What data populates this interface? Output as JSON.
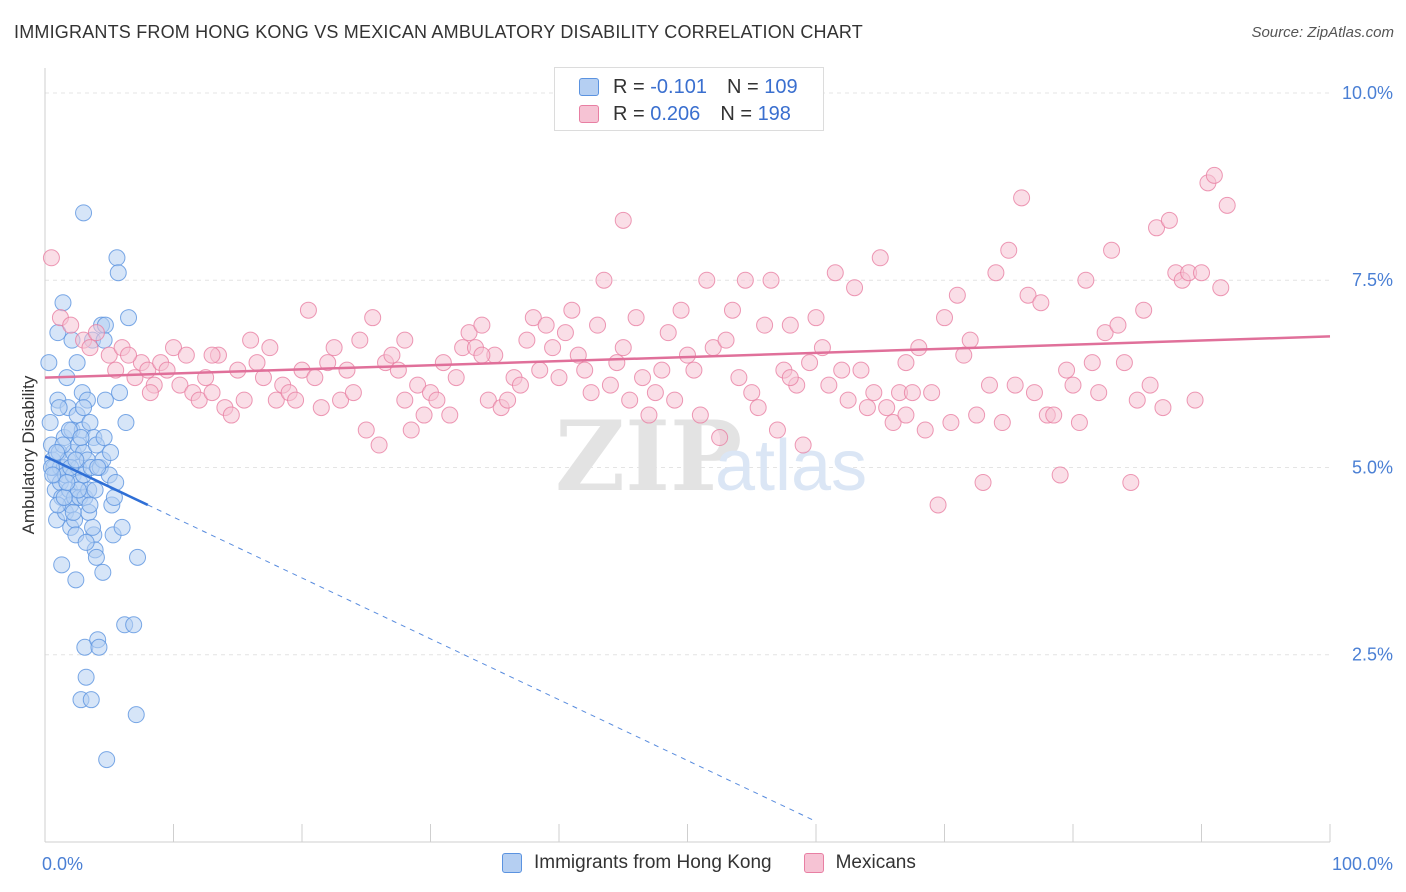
{
  "header": {
    "title": "IMMIGRANTS FROM HONG KONG VS MEXICAN AMBULATORY DISABILITY CORRELATION CHART",
    "source": "Source: ZipAtlas.com"
  },
  "legend": {
    "rows": [
      {
        "r_label": "R =",
        "r_value": "-0.101",
        "n_label": "N =",
        "n_value": "109"
      },
      {
        "r_label": "R =",
        "r_value": "0.206",
        "n_label": "N =",
        "n_value": "198"
      }
    ]
  },
  "watermark": {
    "zip": "ZIP",
    "atlas": "atlas"
  },
  "colors": {
    "blue": "#5b93e0",
    "blue_fill": "#b5cff2",
    "blue_line": "#2f6fd6",
    "pink": "#e87fa3",
    "pink_fill": "#f6c3d4",
    "pink_line": "#e0709a",
    "axis_label": "#4a7fd4",
    "grid": "#e4e4e4"
  },
  "chart_data": {
    "type": "scatter",
    "title": "IMMIGRANTS FROM HONG KONG VS MEXICAN AMBULATORY DISABILITY CORRELATION CHART",
    "xlabel": "",
    "ylabel": "Ambulatory Disability",
    "xlim": [
      0,
      100
    ],
    "ylim": [
      0,
      10.2
    ],
    "x_tick_labels": [
      "0.0%",
      "100.0%"
    ],
    "y_ticks": [
      2.5,
      5.0,
      7.5,
      10.0
    ],
    "y_tick_labels": [
      "2.5%",
      "5.0%",
      "7.5%",
      "10.0%"
    ],
    "grid": true,
    "series": [
      {
        "name": "Immigrants from Hong Kong",
        "color": "blue",
        "trend": {
          "x0": 0,
          "y0": 5.15,
          "x1": 8,
          "y1": 4.5,
          "dashed_to_x": 60
        },
        "points": [
          [
            0.3,
            6.4
          ],
          [
            0.4,
            5.6
          ],
          [
            0.5,
            5.3
          ],
          [
            0.6,
            5.1
          ],
          [
            0.7,
            5.0
          ],
          [
            0.8,
            4.9
          ],
          [
            0.8,
            4.7
          ],
          [
            0.9,
            4.3
          ],
          [
            1.0,
            6.8
          ],
          [
            1.0,
            5.9
          ],
          [
            1.1,
            5.2
          ],
          [
            1.2,
            5.0
          ],
          [
            1.2,
            4.8
          ],
          [
            1.3,
            4.6
          ],
          [
            1.3,
            3.7
          ],
          [
            1.4,
            7.2
          ],
          [
            1.5,
            5.4
          ],
          [
            1.5,
            5.0
          ],
          [
            1.6,
            4.9
          ],
          [
            1.6,
            4.4
          ],
          [
            1.7,
            6.2
          ],
          [
            1.8,
            5.8
          ],
          [
            1.8,
            5.1
          ],
          [
            1.9,
            4.7
          ],
          [
            2.0,
            4.5
          ],
          [
            2.0,
            4.2
          ],
          [
            2.1,
            6.7
          ],
          [
            2.1,
            5.5
          ],
          [
            2.2,
            5.2
          ],
          [
            2.2,
            4.9
          ],
          [
            2.3,
            4.6
          ],
          [
            2.3,
            4.3
          ],
          [
            2.4,
            4.1
          ],
          [
            2.4,
            3.5
          ],
          [
            2.5,
            6.4
          ],
          [
            2.5,
            5.7
          ],
          [
            2.6,
            5.3
          ],
          [
            2.6,
            5.0
          ],
          [
            2.7,
            4.8
          ],
          [
            2.7,
            4.6
          ],
          [
            2.8,
            1.9
          ],
          [
            2.9,
            6.0
          ],
          [
            2.9,
            5.5
          ],
          [
            3.0,
            5.2
          ],
          [
            3.0,
            4.9
          ],
          [
            3.1,
            4.6
          ],
          [
            3.1,
            2.6
          ],
          [
            3.2,
            2.2
          ],
          [
            3.3,
            5.9
          ],
          [
            3.3,
            5.1
          ],
          [
            3.4,
            4.7
          ],
          [
            3.4,
            4.4
          ],
          [
            3.5,
            5.6
          ],
          [
            3.6,
            5.0
          ],
          [
            3.6,
            1.9
          ],
          [
            3.7,
            6.7
          ],
          [
            3.8,
            5.4
          ],
          [
            3.8,
            4.1
          ],
          [
            3.9,
            3.9
          ],
          [
            4.0,
            5.3
          ],
          [
            4.0,
            3.8
          ],
          [
            4.1,
            2.7
          ],
          [
            4.2,
            2.6
          ],
          [
            4.3,
            5.0
          ],
          [
            4.4,
            6.9
          ],
          [
            4.5,
            5.1
          ],
          [
            4.5,
            3.6
          ],
          [
            4.6,
            6.7
          ],
          [
            4.7,
            5.9
          ],
          [
            4.8,
            1.1
          ],
          [
            3.0,
            8.4
          ],
          [
            4.7,
            6.9
          ],
          [
            5.0,
            4.9
          ],
          [
            5.2,
            4.5
          ],
          [
            5.3,
            4.1
          ],
          [
            5.5,
            4.8
          ],
          [
            5.6,
            7.8
          ],
          [
            5.7,
            7.6
          ],
          [
            5.8,
            6.0
          ],
          [
            6.0,
            4.2
          ],
          [
            6.2,
            2.9
          ],
          [
            6.3,
            5.6
          ],
          [
            6.5,
            7.0
          ],
          [
            6.9,
            2.9
          ],
          [
            7.1,
            1.7
          ],
          [
            7.2,
            3.8
          ],
          [
            0.5,
            5.0
          ],
          [
            1.0,
            4.5
          ],
          [
            1.4,
            5.3
          ],
          [
            2.0,
            5.0
          ],
          [
            2.6,
            4.7
          ],
          [
            3.2,
            4.0
          ],
          [
            3.7,
            4.2
          ],
          [
            1.1,
            5.8
          ],
          [
            1.9,
            5.5
          ],
          [
            2.4,
            5.1
          ],
          [
            0.6,
            4.9
          ],
          [
            1.5,
            4.6
          ],
          [
            2.8,
            5.4
          ],
          [
            3.5,
            4.5
          ],
          [
            4.1,
            5.0
          ],
          [
            0.9,
            5.2
          ],
          [
            1.7,
            4.8
          ],
          [
            2.2,
            4.4
          ],
          [
            3.0,
            5.8
          ],
          [
            3.9,
            4.7
          ],
          [
            4.6,
            5.4
          ],
          [
            5.1,
            5.2
          ],
          [
            5.4,
            4.6
          ]
        ]
      },
      {
        "name": "Mexicans",
        "color": "pink",
        "trend": {
          "x0": 0,
          "y0": 6.2,
          "x1": 100,
          "y1": 6.75
        },
        "points": [
          [
            0.5,
            7.8
          ],
          [
            1.2,
            7.0
          ],
          [
            2.0,
            6.9
          ],
          [
            3.0,
            6.7
          ],
          [
            4.0,
            6.8
          ],
          [
            5.0,
            6.5
          ],
          [
            5.5,
            6.3
          ],
          [
            6.0,
            6.6
          ],
          [
            7.0,
            6.2
          ],
          [
            7.5,
            6.4
          ],
          [
            8.0,
            6.3
          ],
          [
            8.5,
            6.1
          ],
          [
            9.0,
            6.4
          ],
          [
            9.5,
            6.3
          ],
          [
            10.0,
            6.6
          ],
          [
            10.5,
            6.1
          ],
          [
            11.0,
            6.5
          ],
          [
            11.5,
            6.0
          ],
          [
            12.0,
            5.9
          ],
          [
            12.5,
            6.2
          ],
          [
            13.0,
            6.0
          ],
          [
            13.5,
            6.5
          ],
          [
            14.0,
            5.8
          ],
          [
            14.5,
            5.7
          ],
          [
            15.0,
            6.3
          ],
          [
            15.5,
            5.9
          ],
          [
            16.0,
            6.7
          ],
          [
            16.5,
            6.4
          ],
          [
            17.0,
            6.2
          ],
          [
            17.5,
            6.6
          ],
          [
            18.0,
            5.9
          ],
          [
            18.5,
            6.1
          ],
          [
            19.0,
            6.0
          ],
          [
            19.5,
            5.9
          ],
          [
            20.0,
            6.3
          ],
          [
            20.5,
            7.1
          ],
          [
            21.0,
            6.2
          ],
          [
            21.5,
            5.8
          ],
          [
            22.0,
            6.4
          ],
          [
            22.5,
            6.6
          ],
          [
            23.0,
            5.9
          ],
          [
            23.5,
            6.3
          ],
          [
            24.0,
            6.0
          ],
          [
            24.5,
            6.7
          ],
          [
            25.0,
            5.5
          ],
          [
            25.5,
            7.0
          ],
          [
            26.0,
            5.3
          ],
          [
            26.5,
            6.4
          ],
          [
            27.0,
            6.5
          ],
          [
            27.5,
            6.3
          ],
          [
            28.0,
            5.9
          ],
          [
            28.5,
            5.5
          ],
          [
            29.0,
            6.1
          ],
          [
            29.5,
            5.7
          ],
          [
            30.0,
            6.0
          ],
          [
            30.5,
            5.9
          ],
          [
            31.0,
            6.4
          ],
          [
            31.5,
            5.7
          ],
          [
            32.0,
            6.2
          ],
          [
            32.5,
            6.6
          ],
          [
            33.0,
            6.8
          ],
          [
            33.5,
            6.6
          ],
          [
            34.0,
            6.9
          ],
          [
            34.5,
            5.9
          ],
          [
            35.0,
            6.5
          ],
          [
            35.5,
            5.8
          ],
          [
            36.0,
            5.9
          ],
          [
            36.5,
            6.2
          ],
          [
            37.0,
            6.1
          ],
          [
            37.5,
            6.7
          ],
          [
            38.0,
            7.0
          ],
          [
            38.5,
            6.3
          ],
          [
            39.0,
            6.9
          ],
          [
            39.5,
            6.6
          ],
          [
            40.0,
            6.2
          ],
          [
            40.5,
            6.8
          ],
          [
            41.0,
            7.1
          ],
          [
            41.5,
            6.5
          ],
          [
            42.0,
            6.3
          ],
          [
            42.5,
            6.0
          ],
          [
            43.0,
            6.9
          ],
          [
            43.5,
            7.5
          ],
          [
            44.0,
            6.1
          ],
          [
            44.5,
            6.4
          ],
          [
            45.0,
            6.6
          ],
          [
            45.5,
            5.9
          ],
          [
            46.0,
            7.0
          ],
          [
            46.5,
            6.2
          ],
          [
            47.0,
            5.7
          ],
          [
            47.5,
            6.0
          ],
          [
            48.0,
            6.3
          ],
          [
            48.5,
            6.8
          ],
          [
            49.0,
            5.9
          ],
          [
            49.5,
            7.1
          ],
          [
            50.0,
            6.5
          ],
          [
            50.5,
            6.3
          ],
          [
            51.0,
            5.7
          ],
          [
            51.5,
            7.5
          ],
          [
            52.0,
            6.6
          ],
          [
            52.5,
            5.4
          ],
          [
            53.0,
            6.7
          ],
          [
            53.5,
            7.1
          ],
          [
            54.0,
            6.2
          ],
          [
            54.5,
            7.5
          ],
          [
            55.0,
            6.0
          ],
          [
            55.5,
            5.8
          ],
          [
            56.0,
            6.9
          ],
          [
            56.5,
            7.5
          ],
          [
            57.0,
            5.5
          ],
          [
            57.5,
            6.3
          ],
          [
            58.0,
            6.9
          ],
          [
            58.5,
            6.1
          ],
          [
            59.0,
            5.3
          ],
          [
            59.5,
            6.4
          ],
          [
            60.0,
            7.0
          ],
          [
            60.5,
            6.6
          ],
          [
            61.0,
            6.1
          ],
          [
            61.5,
            7.6
          ],
          [
            62.0,
            6.3
          ],
          [
            62.5,
            5.9
          ],
          [
            63.0,
            7.4
          ],
          [
            63.5,
            6.3
          ],
          [
            64.0,
            5.8
          ],
          [
            64.5,
            6.0
          ],
          [
            65.0,
            7.8
          ],
          [
            65.5,
            5.8
          ],
          [
            66.0,
            5.6
          ],
          [
            66.5,
            6.0
          ],
          [
            67.0,
            5.7
          ],
          [
            67.5,
            6.0
          ],
          [
            68.0,
            6.6
          ],
          [
            68.5,
            5.5
          ],
          [
            69.0,
            6.0
          ],
          [
            69.5,
            4.5
          ],
          [
            70.0,
            7.0
          ],
          [
            70.5,
            5.6
          ],
          [
            71.0,
            7.3
          ],
          [
            71.5,
            6.5
          ],
          [
            72.0,
            6.7
          ],
          [
            72.5,
            5.7
          ],
          [
            73.0,
            4.8
          ],
          [
            73.5,
            6.1
          ],
          [
            74.0,
            7.6
          ],
          [
            74.5,
            5.6
          ],
          [
            75.0,
            7.9
          ],
          [
            75.5,
            6.1
          ],
          [
            76.0,
            8.6
          ],
          [
            76.5,
            7.3
          ],
          [
            77.0,
            6.0
          ],
          [
            77.5,
            7.2
          ],
          [
            78.0,
            5.7
          ],
          [
            78.5,
            5.7
          ],
          [
            79.0,
            4.9
          ],
          [
            79.5,
            6.3
          ],
          [
            80.0,
            6.1
          ],
          [
            80.5,
            5.6
          ],
          [
            81.0,
            7.5
          ],
          [
            81.5,
            6.4
          ],
          [
            82.0,
            6.0
          ],
          [
            82.5,
            6.8
          ],
          [
            83.0,
            7.9
          ],
          [
            83.5,
            6.9
          ],
          [
            84.0,
            6.4
          ],
          [
            84.5,
            4.8
          ],
          [
            85.0,
            5.9
          ],
          [
            85.5,
            7.1
          ],
          [
            86.0,
            6.1
          ],
          [
            86.5,
            8.2
          ],
          [
            87.0,
            5.8
          ],
          [
            87.5,
            8.3
          ],
          [
            88.0,
            7.6
          ],
          [
            88.5,
            7.5
          ],
          [
            89.0,
            7.6
          ],
          [
            89.5,
            5.9
          ],
          [
            90.0,
            7.6
          ],
          [
            90.5,
            8.8
          ],
          [
            91.0,
            8.9
          ],
          [
            91.5,
            7.4
          ],
          [
            92.0,
            8.5
          ],
          [
            45.0,
            8.3
          ],
          [
            3.5,
            6.6
          ],
          [
            6.5,
            6.5
          ],
          [
            8.2,
            6.0
          ],
          [
            13.0,
            6.5
          ],
          [
            28.0,
            6.7
          ],
          [
            34.0,
            6.5
          ],
          [
            58.0,
            6.2
          ],
          [
            67.0,
            6.4
          ]
        ]
      }
    ]
  },
  "bottom_legend": [
    {
      "label": "Immigrants from Hong Kong"
    },
    {
      "label": "Mexicans"
    }
  ]
}
